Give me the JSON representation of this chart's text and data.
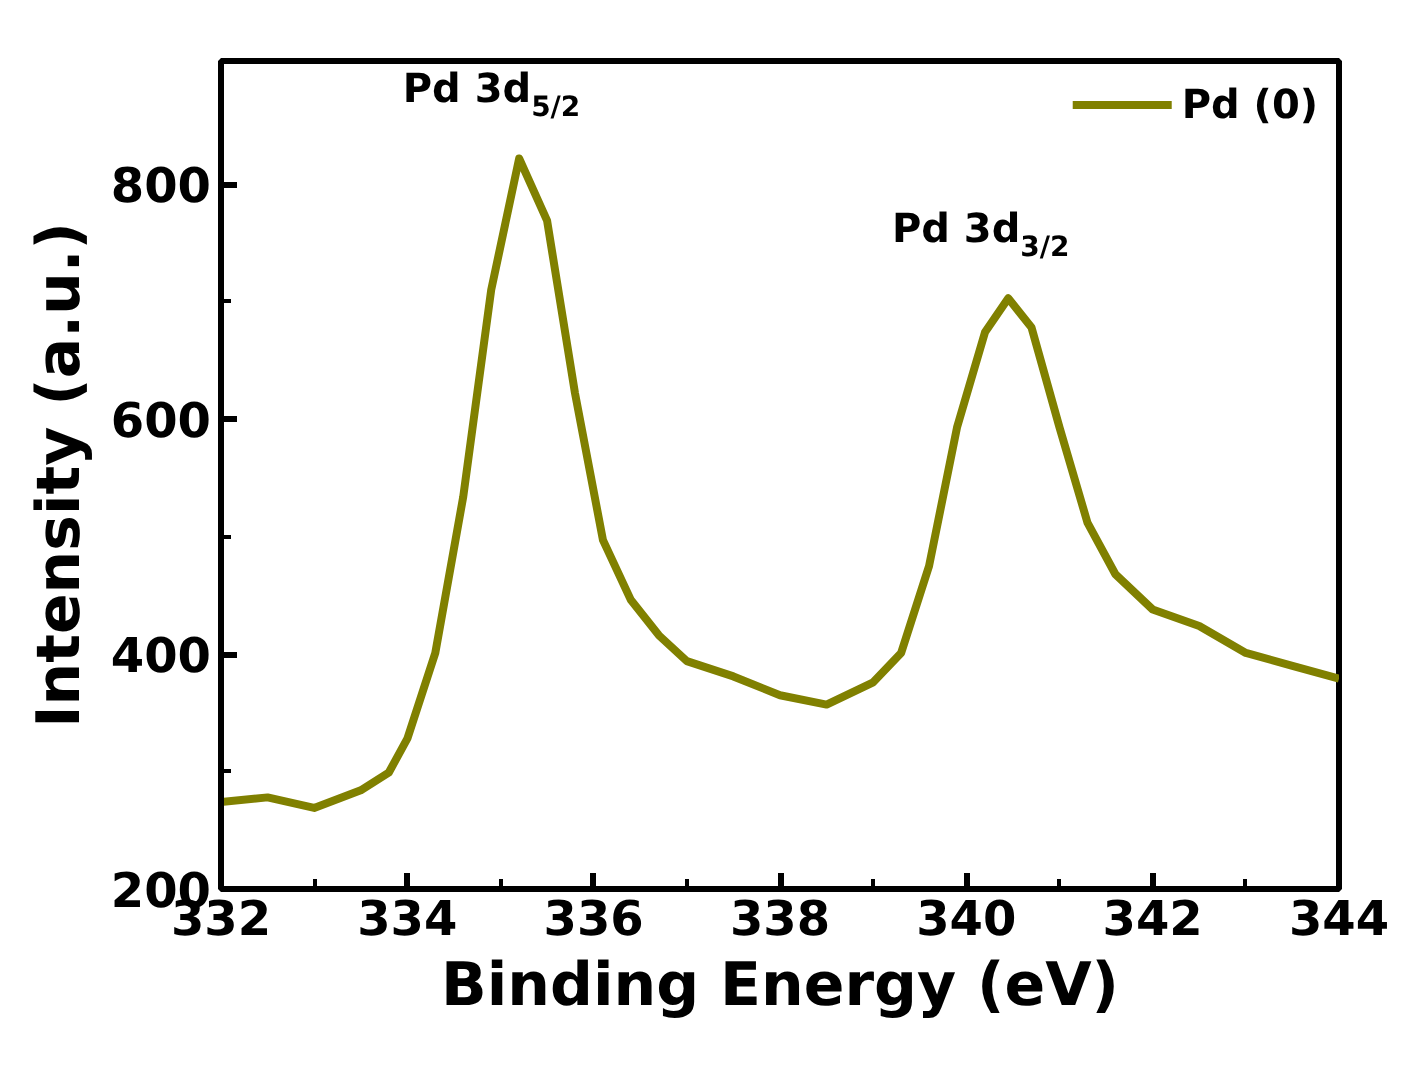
{
  "chart_data": {
    "type": "line",
    "xlabel": "Binding Energy (eV)",
    "ylabel": "Intensity (a.u.)",
    "x": [
      332,
      332.5,
      333,
      333.5,
      333.8,
      334,
      334.3,
      334.6,
      334.9,
      335.2,
      335.5,
      335.8,
      336.1,
      336.4,
      336.7,
      337,
      337.5,
      338,
      338.5,
      339,
      339.3,
      339.6,
      339.9,
      340.2,
      340.45,
      340.7,
      341,
      341.3,
      341.6,
      342,
      342.5,
      343,
      343.5,
      344
    ],
    "series": [
      {
        "name": "Pd (0)",
        "color": "#808000",
        "values": [
          274,
          278,
          269,
          284,
          299,
          328,
          401,
          534,
          710,
          822,
          769,
          622,
          497,
          446,
          416,
          394,
          381,
          365,
          357,
          376,
          401,
          475,
          593,
          674,
          703,
          678,
          593,
          512,
          468,
          438,
          424,
          401,
          390,
          379
        ]
      }
    ],
    "xlim": [
      332,
      344
    ],
    "xticks": [
      332,
      334,
      336,
      338,
      340,
      342,
      344
    ],
    "ylim": [
      200,
      905
    ],
    "yticks": [
      200,
      400,
      600,
      800
    ],
    "annotations": [
      "Pd 3d$_{5/2}$",
      "Pd 3d$_{3/2}$"
    ],
    "legend": "top right",
    "grid": false,
    "marker": "none",
    "line_style": "solid"
  }
}
